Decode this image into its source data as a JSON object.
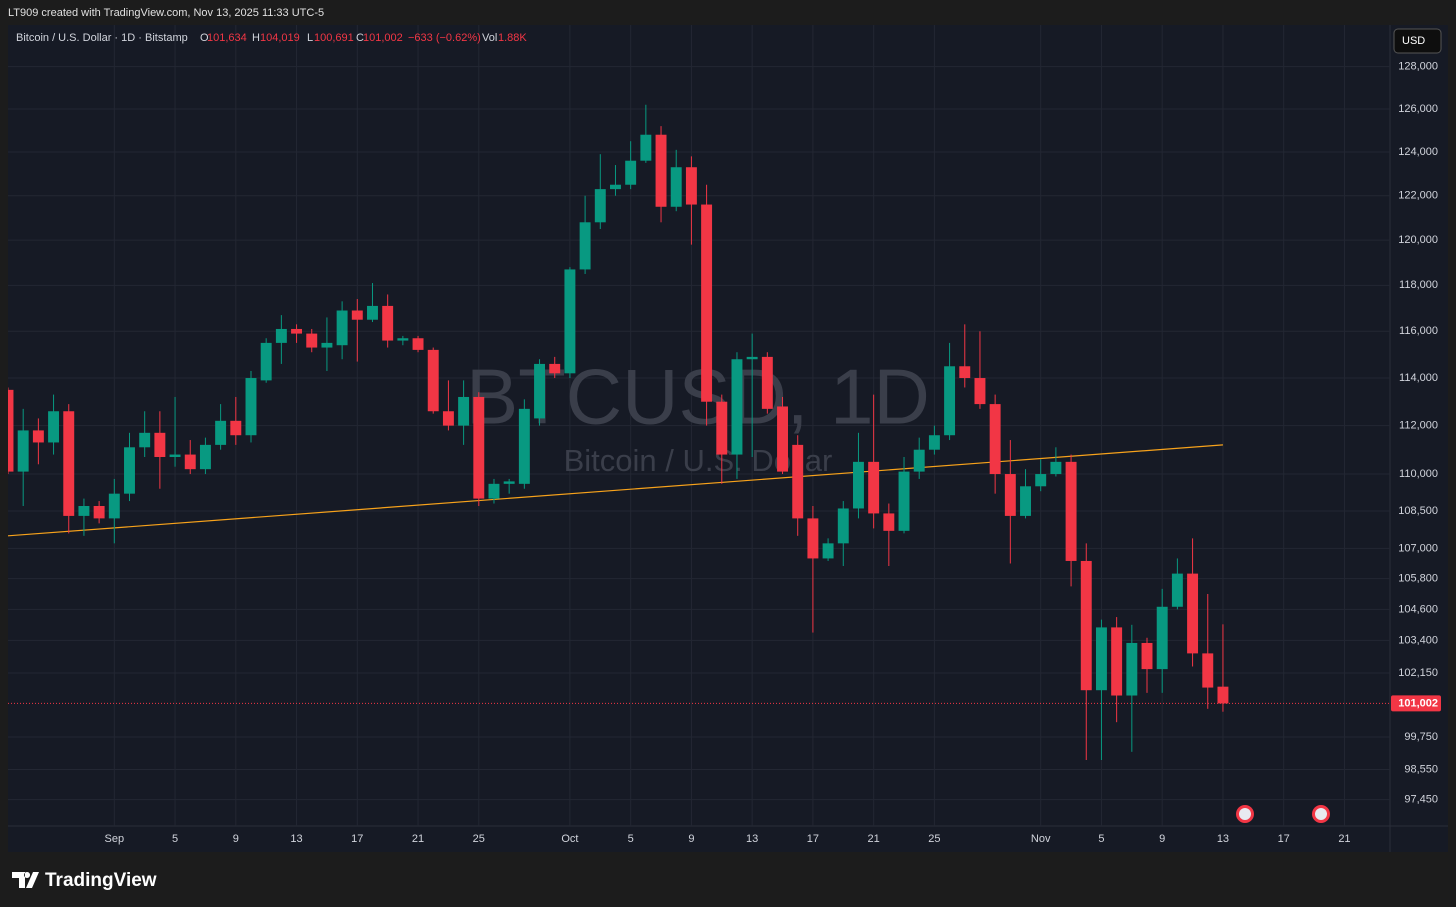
{
  "header": {
    "credit": "LT909 created with TradingView.com, Nov 13, 2025 11:33 UTC-5",
    "symbol": "Bitcoin / U.S. Dollar · 1D · Bitstamp",
    "ohlc": [
      {
        "key": "O",
        "value": "101,634"
      },
      {
        "key": "H",
        "value": "104,019"
      },
      {
        "key": "L",
        "value": "100,691"
      },
      {
        "key": "C",
        "value": "101,002"
      }
    ],
    "change": "−633 (−0.62%)",
    "volume_key": "Vol",
    "volume": "1.88K"
  },
  "currency": "USD",
  "brand": "TradingView",
  "chart_data": {
    "type": "candlestick",
    "watermark_symbol": "BTCUSD, 1D",
    "watermark_name": "Bitcoin / U.S. Dollar",
    "x": [
      "2025-08-25",
      "2025-08-26",
      "2025-08-27",
      "2025-08-28",
      "2025-08-29",
      "2025-08-30",
      "2025-08-31",
      "2025-09-01",
      "2025-09-02",
      "2025-09-03",
      "2025-09-04",
      "2025-09-05",
      "2025-09-06",
      "2025-09-07",
      "2025-09-08",
      "2025-09-09",
      "2025-09-10",
      "2025-09-11",
      "2025-09-12",
      "2025-09-13",
      "2025-09-14",
      "2025-09-15",
      "2025-09-16",
      "2025-09-17",
      "2025-09-18",
      "2025-09-19",
      "2025-09-20",
      "2025-09-21",
      "2025-09-22",
      "2025-09-23",
      "2025-09-24",
      "2025-09-25",
      "2025-09-26",
      "2025-09-27",
      "2025-09-28",
      "2025-09-29",
      "2025-09-30",
      "2025-10-01",
      "2025-10-02",
      "2025-10-03",
      "2025-10-04",
      "2025-10-05",
      "2025-10-06",
      "2025-10-07",
      "2025-10-08",
      "2025-10-09",
      "2025-10-10",
      "2025-10-11",
      "2025-10-12",
      "2025-10-13",
      "2025-10-14",
      "2025-10-15",
      "2025-10-16",
      "2025-10-17",
      "2025-10-18",
      "2025-10-19",
      "2025-10-20",
      "2025-10-21",
      "2025-10-22",
      "2025-10-23",
      "2025-10-24",
      "2025-10-25",
      "2025-10-26",
      "2025-10-27",
      "2025-10-28",
      "2025-10-29",
      "2025-10-30",
      "2025-10-31",
      "2025-11-01",
      "2025-11-02",
      "2025-11-03",
      "2025-11-04",
      "2025-11-05",
      "2025-11-06",
      "2025-11-07",
      "2025-11-08",
      "2025-11-09",
      "2025-11-10",
      "2025-11-11",
      "2025-11-12",
      "2025-11-13"
    ],
    "open": [
      113500,
      110100,
      111800,
      111300,
      112600,
      108300,
      108700,
      108200,
      109200,
      111100,
      111700,
      110700,
      110800,
      110200,
      111200,
      112200,
      111600,
      113900,
      115500,
      116100,
      115900,
      115300,
      115400,
      116900,
      116500,
      117100,
      115600,
      115700,
      115200,
      112600,
      112000,
      113200,
      109000,
      109600,
      109600,
      112300,
      114600,
      114200,
      118700,
      120800,
      122300,
      122500,
      123600,
      124800,
      121500,
      123300,
      121600,
      113000,
      110800,
      114800,
      114900,
      112800,
      111200,
      108200,
      106600,
      107200,
      108600,
      110500,
      108400,
      107700,
      110100,
      111000,
      111600,
      114500,
      114000,
      112900,
      110000,
      108300,
      109500,
      110000,
      110500,
      106500,
      101500,
      103900,
      101300,
      103300,
      102300,
      104700,
      106000,
      102900,
      101634
    ],
    "high": [
      113600,
      112700,
      112300,
      113300,
      112900,
      109000,
      108900,
      109800,
      111700,
      112600,
      112600,
      113200,
      111400,
      111500,
      112900,
      113200,
      114300,
      115700,
      116700,
      116300,
      116100,
      116600,
      117300,
      117400,
      118100,
      117600,
      115800,
      115800,
      115300,
      113900,
      113900,
      113400,
      109800,
      109800,
      113100,
      114800,
      114900,
      118800,
      122000,
      123900,
      123400,
      124500,
      126200,
      125200,
      124100,
      123800,
      122500,
      113300,
      115100,
      115900,
      115100,
      113200,
      111600,
      108700,
      107400,
      108900,
      111700,
      113300,
      108800,
      110700,
      111500,
      112000,
      115500,
      116300,
      116000,
      113300,
      111400,
      110200,
      110600,
      111100,
      110800,
      107200,
      104200,
      104300,
      104000,
      103500,
      105400,
      106600,
      107400,
      105200,
      104019
    ],
    "low": [
      110000,
      108700,
      110400,
      110800,
      107600,
      107500,
      108000,
      107200,
      108900,
      110700,
      109400,
      110300,
      110000,
      110000,
      111000,
      111200,
      111300,
      113800,
      114600,
      115500,
      115100,
      114300,
      114800,
      114700,
      116400,
      115300,
      115400,
      115100,
      112500,
      111800,
      111200,
      108700,
      108800,
      109200,
      109400,
      112000,
      114000,
      114000,
      118500,
      120500,
      122000,
      122300,
      123500,
      120800,
      121300,
      119800,
      112000,
      109600,
      109800,
      110700,
      112500,
      110000,
      107500,
      103700,
      106500,
      106300,
      108200,
      107800,
      106300,
      107600,
      109800,
      110800,
      111400,
      113600,
      112700,
      109200,
      106400,
      108200,
      109300,
      109900,
      105500,
      98900,
      98900,
      100300,
      99200,
      101400,
      101400,
      104600,
      102400,
      100800,
      100691
    ],
    "close": [
      110100,
      111800,
      111300,
      112600,
      108300,
      108700,
      108200,
      109200,
      111100,
      111700,
      110700,
      110800,
      110200,
      111200,
      112200,
      111600,
      114000,
      115500,
      116100,
      115900,
      115300,
      115500,
      116900,
      116500,
      117100,
      115600,
      115700,
      115200,
      112600,
      112000,
      113200,
      109000,
      109600,
      109700,
      112700,
      114600,
      114200,
      118700,
      120800,
      122300,
      122500,
      123600,
      124800,
      121500,
      123300,
      121600,
      113000,
      110800,
      114800,
      114900,
      112700,
      110100,
      108200,
      106600,
      107200,
      108600,
      110500,
      108400,
      107700,
      110100,
      111000,
      111600,
      114500,
      114000,
      112900,
      110000,
      108300,
      109500,
      110000,
      110500,
      106500,
      101500,
      103900,
      101300,
      103300,
      102300,
      104700,
      106000,
      102900,
      101600,
      101002
    ],
    "up_color": "#089981",
    "down_color": "#f23645",
    "log_scale": true,
    "grid": true,
    "ylim": [
      96500,
      130000
    ],
    "yticks": [
      {
        "value": 97450,
        "label": "97,450"
      },
      {
        "value": 98550,
        "label": "98,550"
      },
      {
        "value": 99750,
        "label": "99,750"
      },
      {
        "value": 102150,
        "label": "102,150"
      },
      {
        "value": 103400,
        "label": "103,400"
      },
      {
        "value": 104600,
        "label": "104,600"
      },
      {
        "value": 105800,
        "label": "105,800"
      },
      {
        "value": 107000,
        "label": "107,000"
      },
      {
        "value": 108500,
        "label": "108,500"
      },
      {
        "value": 110000,
        "label": "110,000"
      },
      {
        "value": 112000,
        "label": "112,000"
      },
      {
        "value": 114000,
        "label": "114,000"
      },
      {
        "value": 116000,
        "label": "116,000"
      },
      {
        "value": 118000,
        "label": "118,000"
      },
      {
        "value": 120000,
        "label": "120,000"
      },
      {
        "value": 122000,
        "label": "122,000"
      },
      {
        "value": 124000,
        "label": "124,000"
      },
      {
        "value": 126000,
        "label": "126,000"
      },
      {
        "value": 128000,
        "label": "128,000"
      }
    ],
    "xlim": [
      "2025-08-25",
      "2025-11-24"
    ],
    "xticks": [
      {
        "value": "2025-09-01",
        "label": "Sep"
      },
      {
        "value": "2025-09-05",
        "label": "5"
      },
      {
        "value": "2025-09-09",
        "label": "9"
      },
      {
        "value": "2025-09-13",
        "label": "13"
      },
      {
        "value": "2025-09-17",
        "label": "17"
      },
      {
        "value": "2025-09-21",
        "label": "21"
      },
      {
        "value": "2025-09-25",
        "label": "25"
      },
      {
        "value": "2025-10-01",
        "label": "Oct"
      },
      {
        "value": "2025-10-05",
        "label": "5"
      },
      {
        "value": "2025-10-09",
        "label": "9"
      },
      {
        "value": "2025-10-13",
        "label": "13"
      },
      {
        "value": "2025-10-17",
        "label": "17"
      },
      {
        "value": "2025-10-21",
        "label": "21"
      },
      {
        "value": "2025-10-25",
        "label": "25"
      },
      {
        "value": "2025-11-01",
        "label": "Nov"
      },
      {
        "value": "2025-11-05",
        "label": "5"
      },
      {
        "value": "2025-11-09",
        "label": "9"
      },
      {
        "value": "2025-11-13",
        "label": "13"
      },
      {
        "value": "2025-11-17",
        "label": "17"
      },
      {
        "value": "2025-11-21",
        "label": "21"
      }
    ],
    "last_price": {
      "value": 101002,
      "label": "101,002",
      "color": "#f23645"
    },
    "trend_line": {
      "color": "#f7a21b",
      "points": [
        [
          "2025-08-25",
          107500
        ],
        [
          "2025-11-13",
          111200
        ]
      ]
    }
  }
}
